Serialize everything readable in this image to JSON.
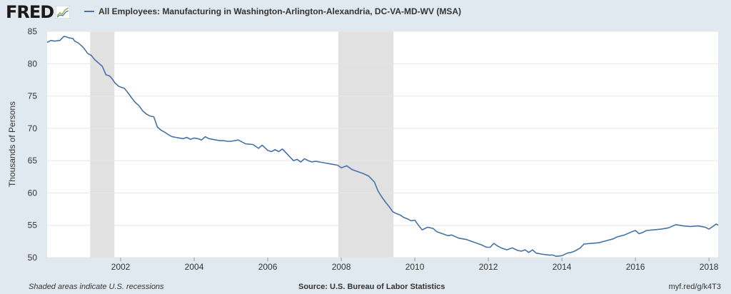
{
  "header": {
    "logo_text": "FRED",
    "logo_icon": "fred-graph-icon",
    "title": "All Employees: Manufacturing in Washington-Arlington-Alexandria, DC-VA-MD-WV (MSA)"
  },
  "footer": {
    "left": "Shaded areas indicate U.S. recessions",
    "center": "Source: U.S. Bureau of Labor Statistics",
    "right": "myf.red/g/k4T3"
  },
  "colors": {
    "series": "#4572a7",
    "recession": "#e1e1e1",
    "plot_bg": "#ffffff",
    "page_bg": "#e1e9f0",
    "grid": "#e6e6e6"
  },
  "chart_data": {
    "type": "line",
    "title": "All Employees: Manufacturing in Washington-Arlington-Alexandria, DC-VA-MD-WV (MSA)",
    "xlabel": "",
    "ylabel": "Thousands of Persons",
    "xlim": [
      2000.0,
      2018.25
    ],
    "ylim": [
      50,
      85
    ],
    "y_ticks": [
      50,
      55,
      60,
      65,
      70,
      75,
      80,
      85
    ],
    "x_ticks": [
      2002,
      2004,
      2006,
      2008,
      2010,
      2012,
      2014,
      2016,
      2018
    ],
    "x_tick_labels": [
      "2002",
      "2004",
      "2006",
      "2008",
      "2010",
      "2012",
      "2014",
      "2016",
      "2018"
    ],
    "grid": "horizontal",
    "recessions": [
      [
        2001.17,
        2001.83
      ],
      [
        2007.92,
        2009.42
      ]
    ],
    "series": [
      {
        "name": "All Employees: Manufacturing in Washington-Arlington-Alexandria, DC-VA-MD-WV (MSA)",
        "x": [
          2000.0,
          2000.1,
          2000.2,
          2000.35,
          2000.45,
          2000.5,
          2000.6,
          2000.7,
          2000.75,
          2000.85,
          2000.95,
          2001.0,
          2001.1,
          2001.2,
          2001.3,
          2001.4,
          2001.5,
          2001.6,
          2001.7,
          2001.75,
          2001.85,
          2001.95,
          2002.1,
          2002.2,
          2002.3,
          2002.4,
          2002.5,
          2002.6,
          2002.7,
          2002.8,
          2002.9,
          2003.0,
          2003.1,
          2003.2,
          2003.3,
          2003.4,
          2003.5,
          2003.6,
          2003.7,
          2003.8,
          2003.9,
          2004.0,
          2004.1,
          2004.2,
          2004.3,
          2004.4,
          2004.5,
          2004.6,
          2004.7,
          2004.8,
          2004.9,
          2005.0,
          2005.2,
          2005.4,
          2005.6,
          2005.75,
          2005.85,
          2006.0,
          2006.1,
          2006.2,
          2006.3,
          2006.4,
          2006.5,
          2006.6,
          2006.7,
          2006.8,
          2006.9,
          2007.0,
          2007.1,
          2007.2,
          2007.3,
          2007.5,
          2007.7,
          2007.9,
          2008.0,
          2008.15,
          2008.3,
          2008.45,
          2008.6,
          2008.75,
          2008.9,
          2009.0,
          2009.1,
          2009.2,
          2009.3,
          2009.4,
          2009.5,
          2009.6,
          2009.7,
          2009.8,
          2009.9,
          2010.0,
          2010.1,
          2010.2,
          2010.35,
          2010.5,
          2010.6,
          2010.75,
          2010.9,
          2011.0,
          2011.2,
          2011.4,
          2011.6,
          2011.8,
          2011.95,
          2012.05,
          2012.15,
          2012.25,
          2012.35,
          2012.5,
          2012.65,
          2012.8,
          2012.9,
          2013.0,
          2013.1,
          2013.2,
          2013.3,
          2013.5,
          2013.65,
          2013.75,
          2013.85,
          2014.0,
          2014.15,
          2014.25,
          2014.35,
          2014.5,
          2014.6,
          2014.8,
          2015.0,
          2015.2,
          2015.4,
          2015.5,
          2015.7,
          2015.9,
          2016.0,
          2016.1,
          2016.2,
          2016.3,
          2016.5,
          2016.7,
          2016.9,
          2017.1,
          2017.3,
          2017.5,
          2017.7,
          2017.9,
          2018.0,
          2018.1,
          2018.2,
          2018.25
        ],
        "values": [
          83.3,
          83.6,
          83.5,
          83.6,
          84.2,
          84.2,
          84.0,
          83.9,
          83.5,
          83.2,
          82.7,
          82.4,
          81.6,
          81.3,
          80.6,
          80.1,
          79.6,
          78.3,
          78.1,
          77.8,
          77.0,
          76.5,
          76.2,
          75.5,
          74.7,
          74.0,
          73.5,
          72.7,
          72.2,
          71.9,
          71.8,
          70.2,
          69.7,
          69.4,
          69.0,
          68.7,
          68.6,
          68.5,
          68.4,
          68.6,
          68.3,
          68.5,
          68.4,
          68.2,
          68.7,
          68.4,
          68.3,
          68.2,
          68.1,
          68.1,
          68.0,
          68.0,
          68.2,
          67.6,
          67.5,
          66.9,
          67.4,
          66.6,
          66.4,
          66.7,
          66.4,
          66.8,
          66.2,
          65.6,
          65.0,
          65.2,
          64.8,
          65.3,
          65.0,
          64.8,
          64.9,
          64.7,
          64.5,
          64.3,
          63.9,
          64.2,
          63.6,
          63.3,
          63.0,
          62.6,
          61.7,
          60.3,
          59.4,
          58.6,
          57.9,
          57.1,
          56.8,
          56.6,
          56.2,
          56.0,
          55.7,
          55.8,
          55.0,
          54.3,
          54.7,
          54.5,
          54.0,
          53.7,
          53.4,
          53.5,
          53.0,
          52.8,
          52.4,
          52.0,
          51.6,
          51.6,
          52.2,
          51.8,
          51.5,
          51.2,
          51.5,
          51.1,
          51.0,
          51.2,
          50.8,
          51.2,
          50.7,
          50.5,
          50.4,
          50.4,
          50.2,
          50.3,
          50.7,
          50.8,
          51.0,
          51.5,
          52.1,
          52.2,
          52.3,
          52.6,
          52.9,
          53.2,
          53.5,
          54.0,
          54.2,
          53.7,
          53.9,
          54.2,
          54.3,
          54.4,
          54.6,
          55.1,
          54.9,
          54.8,
          54.9,
          54.7,
          54.4,
          54.8,
          55.2,
          55.0
        ]
      }
    ]
  }
}
